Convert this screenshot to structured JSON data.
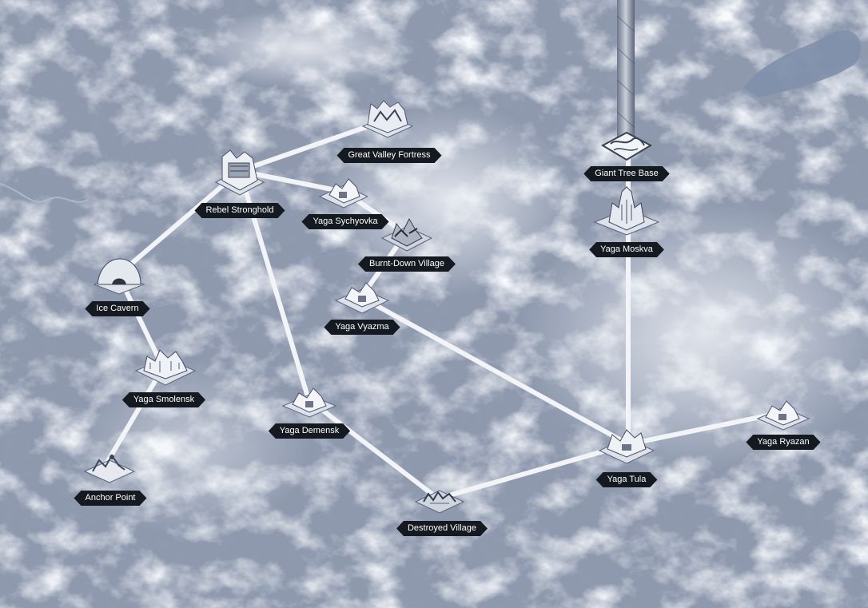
{
  "map": {
    "tree_icon": "giant-tree-trunk",
    "lake_icon": "frozen-lake",
    "locations": [
      {
        "id": "great-valley-fortress",
        "name": "Great Valley Fortress",
        "icon": "fortress-icon"
      },
      {
        "id": "rebel-stronghold",
        "name": "Rebel Stronghold",
        "icon": "stronghold-icon"
      },
      {
        "id": "giant-tree-base",
        "name": "Giant Tree Base",
        "icon": "tree-base-icon"
      },
      {
        "id": "yaga-sychyovka",
        "name": "Yaga Sychyovka",
        "icon": "village-icon"
      },
      {
        "id": "burnt-down-village",
        "name": "Burnt-Down Village",
        "icon": "burnt-village-icon"
      },
      {
        "id": "yaga-moskva",
        "name": "Yaga Moskva",
        "icon": "cathedral-icon"
      },
      {
        "id": "ice-cavern",
        "name": "Ice Cavern",
        "icon": "cave-icon"
      },
      {
        "id": "yaga-vyazma",
        "name": "Yaga Vyazma",
        "icon": "village-icon"
      },
      {
        "id": "yaga-smolensk",
        "name": "Yaga Smolensk",
        "icon": "town-icon"
      },
      {
        "id": "yaga-demensk",
        "name": "Yaga Demensk",
        "icon": "village-icon"
      },
      {
        "id": "yaga-ryazan",
        "name": "Yaga Ryazan",
        "icon": "village-icon"
      },
      {
        "id": "yaga-tula",
        "name": "Yaga Tula",
        "icon": "town-icon"
      },
      {
        "id": "anchor-point",
        "name": "Anchor Point",
        "icon": "anchor-icon"
      },
      {
        "id": "destroyed-village",
        "name": "Destroyed Village",
        "icon": "ruins-icon"
      }
    ],
    "routes": [
      [
        "great-valley-fortress",
        "rebel-stronghold"
      ],
      [
        "rebel-stronghold",
        "yaga-sychyovka"
      ],
      [
        "rebel-stronghold",
        "ice-cavern"
      ],
      [
        "rebel-stronghold",
        "yaga-demensk"
      ],
      [
        "yaga-sychyovka",
        "burnt-down-village"
      ],
      [
        "burnt-down-village",
        "yaga-vyazma"
      ],
      [
        "yaga-vyazma",
        "yaga-tula"
      ],
      [
        "ice-cavern",
        "yaga-smolensk"
      ],
      [
        "yaga-smolensk",
        "anchor-point"
      ],
      [
        "yaga-demensk",
        "destroyed-village"
      ],
      [
        "destroyed-village",
        "yaga-tula"
      ],
      [
        "yaga-tula",
        "yaga-ryazan"
      ],
      [
        "yaga-tula",
        "yaga-moskva"
      ],
      [
        "yaga-moskva",
        "giant-tree-base"
      ]
    ],
    "colors": {
      "route": "#f2f4f8",
      "label_bg": "#151a21",
      "label_text": "#ffffff",
      "terrain": "#8a95ab",
      "snow": "#e8ecf3"
    }
  }
}
